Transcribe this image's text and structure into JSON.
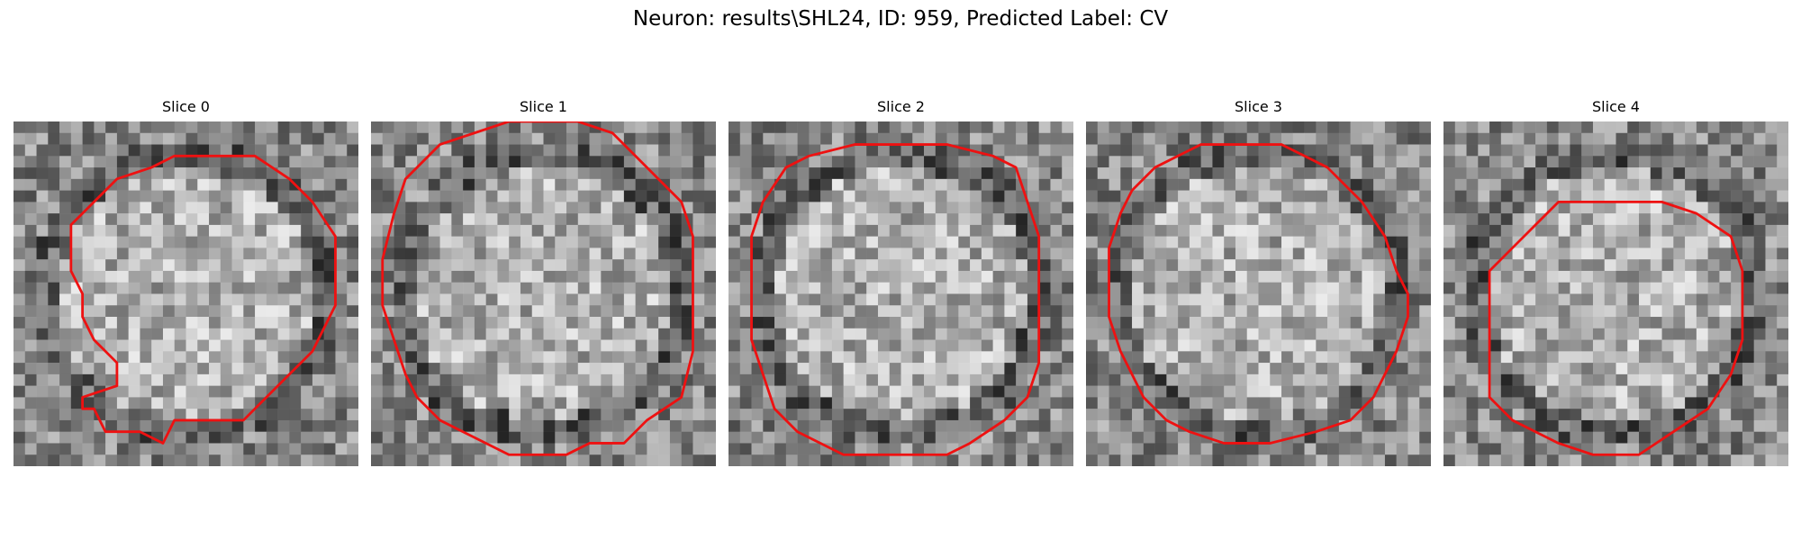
{
  "figure": {
    "title": "Neuron: results\\SHL24, ID: 959, Predicted Label: CV",
    "colormap": "gray",
    "contour_color": "#ee1111",
    "grid_size": 30
  },
  "slices": [
    {
      "title": "Slice 0",
      "seed": 11,
      "contour": [
        [
          14,
          3
        ],
        [
          21,
          3
        ],
        [
          24,
          5
        ],
        [
          26,
          7
        ],
        [
          28,
          10
        ],
        [
          28,
          16
        ],
        [
          27,
          18
        ],
        [
          26,
          20
        ],
        [
          24,
          22
        ],
        [
          22,
          24
        ],
        [
          20,
          26
        ],
        [
          14,
          26
        ],
        [
          13,
          28
        ],
        [
          11,
          27
        ],
        [
          8,
          27
        ],
        [
          7,
          25
        ],
        [
          6,
          25
        ],
        [
          6,
          24
        ],
        [
          9,
          23
        ],
        [
          9,
          21
        ],
        [
          7,
          19
        ],
        [
          6,
          17
        ],
        [
          6,
          15
        ],
        [
          5,
          13
        ],
        [
          5,
          9
        ],
        [
          7,
          7
        ],
        [
          9,
          5
        ],
        [
          12,
          4
        ]
      ]
    },
    {
      "title": "Slice 1",
      "seed": 23,
      "contour": [
        [
          9,
          1
        ],
        [
          12,
          0
        ],
        [
          18,
          0
        ],
        [
          21,
          1
        ],
        [
          23,
          3
        ],
        [
          25,
          5
        ],
        [
          27,
          7
        ],
        [
          28,
          10
        ],
        [
          28,
          20
        ],
        [
          27,
          24
        ],
        [
          24,
          26
        ],
        [
          22,
          28
        ],
        [
          19,
          28
        ],
        [
          17,
          29
        ],
        [
          12,
          29
        ],
        [
          10,
          28
        ],
        [
          8,
          27
        ],
        [
          6,
          26
        ],
        [
          4,
          24
        ],
        [
          3,
          22
        ],
        [
          2,
          19
        ],
        [
          1,
          16
        ],
        [
          1,
          12
        ],
        [
          2,
          8
        ],
        [
          3,
          5
        ],
        [
          6,
          2
        ]
      ]
    },
    {
      "title": "Slice 2",
      "seed": 37,
      "contour": [
        [
          11,
          2
        ],
        [
          19,
          2
        ],
        [
          23,
          3
        ],
        [
          25,
          4
        ],
        [
          26,
          7
        ],
        [
          27,
          10
        ],
        [
          27,
          21
        ],
        [
          26,
          24
        ],
        [
          24,
          26
        ],
        [
          21,
          28
        ],
        [
          19,
          29
        ],
        [
          10,
          29
        ],
        [
          8,
          28
        ],
        [
          6,
          27
        ],
        [
          4,
          25
        ],
        [
          3,
          22
        ],
        [
          2,
          19
        ],
        [
          2,
          10
        ],
        [
          3,
          7
        ],
        [
          5,
          4
        ],
        [
          7,
          3
        ]
      ]
    },
    {
      "title": "Slice 3",
      "seed": 49,
      "contour": [
        [
          10,
          2
        ],
        [
          17,
          2
        ],
        [
          19,
          3
        ],
        [
          21,
          4
        ],
        [
          22,
          5
        ],
        [
          24,
          7
        ],
        [
          26,
          10
        ],
        [
          27,
          13
        ],
        [
          28,
          15
        ],
        [
          28,
          17
        ],
        [
          27,
          20
        ],
        [
          26,
          22
        ],
        [
          25,
          24
        ],
        [
          23,
          26
        ],
        [
          20,
          27
        ],
        [
          16,
          28
        ],
        [
          12,
          28
        ],
        [
          9,
          27
        ],
        [
          7,
          26
        ],
        [
          5,
          24
        ],
        [
          4,
          22
        ],
        [
          3,
          20
        ],
        [
          2,
          17
        ],
        [
          2,
          11
        ],
        [
          3,
          8
        ],
        [
          4,
          6
        ],
        [
          6,
          4
        ],
        [
          8,
          3
        ]
      ]
    },
    {
      "title": "Slice 4",
      "seed": 61,
      "contour": [
        [
          10,
          7
        ],
        [
          19,
          7
        ],
        [
          22,
          8
        ],
        [
          25,
          10
        ],
        [
          26,
          13
        ],
        [
          26,
          19
        ],
        [
          25,
          22
        ],
        [
          23,
          25
        ],
        [
          20,
          27
        ],
        [
          17,
          29
        ],
        [
          13,
          29
        ],
        [
          10,
          28
        ],
        [
          8,
          27
        ],
        [
          6,
          26
        ],
        [
          4,
          24
        ],
        [
          4,
          13
        ],
        [
          6,
          11
        ],
        [
          8,
          9
        ]
      ]
    }
  ]
}
